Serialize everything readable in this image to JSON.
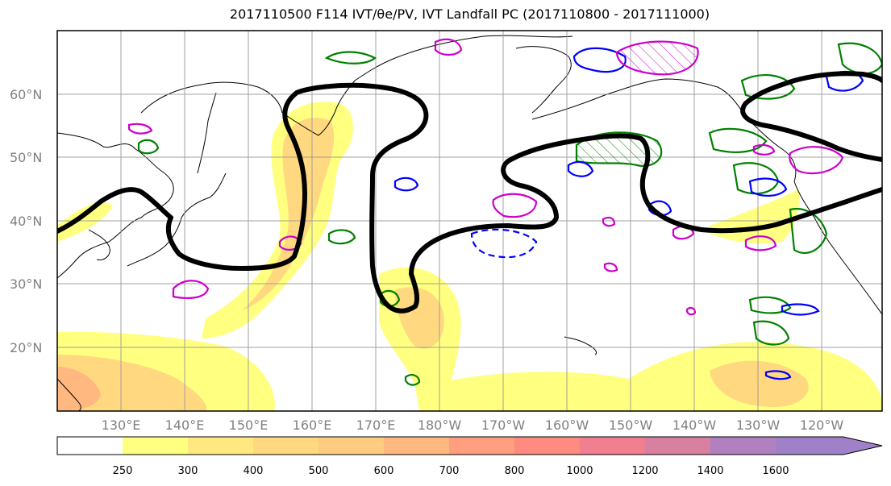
{
  "title": "2017110500 F114 IVT/θe/PV, IVT Landfall PC (2017110800 - 2017111000)",
  "map": {
    "lat_labels": [
      "60°N",
      "50°N",
      "40°N",
      "30°N",
      "20°N"
    ],
    "lon_labels": [
      "130°E",
      "140°E",
      "150°E",
      "160°E",
      "170°E",
      "180°W",
      "170°W",
      "160°W",
      "150°W",
      "140°W",
      "130°W",
      "120°W"
    ],
    "colors": {
      "theta_e_contour": "#000000",
      "pv_positive": "#00008b",
      "pv_negative": "#cc00cc",
      "landfall_pc": "#008000",
      "coastline": "#000000",
      "gridline": "#999999"
    }
  },
  "colorbar": {
    "levels": [
      "250",
      "300",
      "400",
      "500",
      "600",
      "700",
      "800",
      "1000",
      "1200",
      "1400",
      "1600"
    ],
    "colors": [
      "#ffffff",
      "#ffff80",
      "#ffe880",
      "#ffd880",
      "#ffcc80",
      "#ffb880",
      "#ff9f80",
      "#ff8a80",
      "#f08090",
      "#d880a0",
      "#b080c0",
      "#a080c8"
    ]
  }
}
